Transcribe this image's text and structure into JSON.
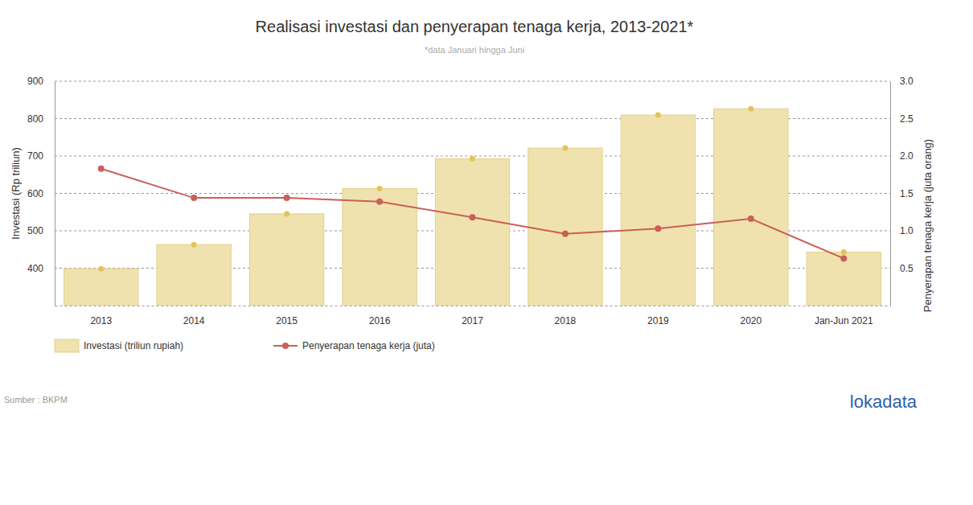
{
  "chart_data": {
    "type": "bar",
    "title": "Realisasi investasi dan penyerapan tenaga kerja, 2013-2021*",
    "subtitle": "*data Januari hingga Juni",
    "y_label": "Investasi (Rp triliun)",
    "y2_label": "Penyerapan tenaga kerja (juta orang)",
    "source": "Sumber : BKPM",
    "logo": "lokadata",
    "categories": [
      "2013",
      "2014",
      "2015",
      "2016",
      "2017",
      "2018",
      "2019",
      "2020",
      "Jan-Jun 2021"
    ],
    "series": [
      {
        "name": "Investasi (triliun rupiah)",
        "type": "bar",
        "color": "#f0e2ae",
        "marker": "circle",
        "values": [
          398.6,
          463.1,
          545.4,
          612.8,
          692.8,
          721.3,
          809.6,
          826.3,
          442.8
        ]
      },
      {
        "name": "Penyerapan tenaga kerja (juta)",
        "type": "line",
        "color": "#c8605a",
        "marker": "circle",
        "axis": "y2",
        "values": [
          1.83,
          1.44,
          1.44,
          1.39,
          1.18,
          0.96,
          1.03,
          1.16,
          0.63
        ]
      }
    ],
    "ylim": [
      300,
      900
    ],
    "yticks": [
      400,
      500,
      600,
      700,
      800,
      900
    ],
    "y2lim": [
      0,
      3
    ],
    "y2ticks": [
      0.5,
      {
        "value": 1,
        "label": "1.0"
      },
      1.5,
      {
        "value": 2,
        "label": "2.0"
      },
      2.5,
      {
        "value": 3,
        "label": "3.0"
      }
    ],
    "grid": true,
    "legend": "bottom"
  }
}
